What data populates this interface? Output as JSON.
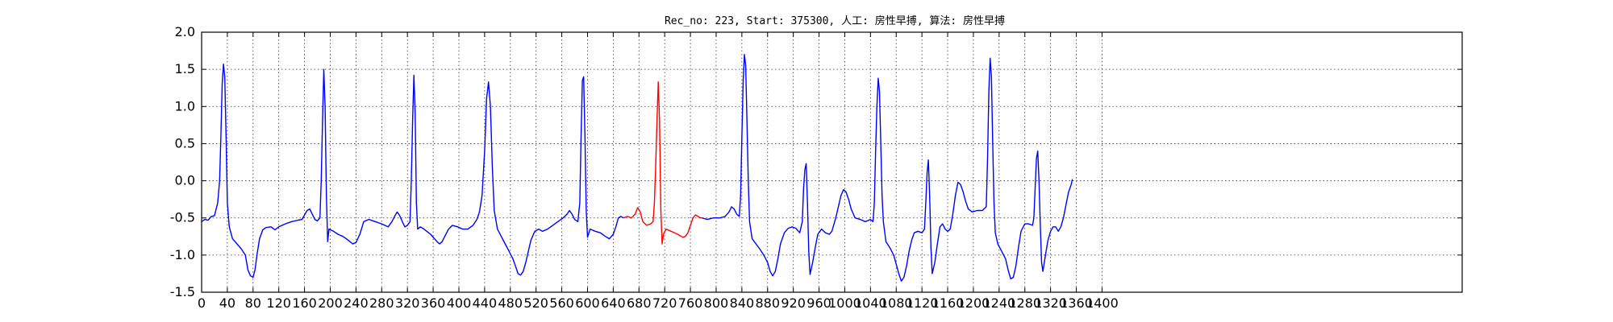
{
  "chart_data": {
    "type": "line",
    "title": "Rec_no: 223, Start: 375300, 人工: 房性早搏, 算法: 房性早搏",
    "xlabel": "",
    "ylabel": "",
    "xlim": [
      0,
      1960
    ],
    "ylim": [
      -1.5,
      2.0
    ],
    "yticks": [
      -1.5,
      -1.0,
      -0.5,
      0.0,
      0.5,
      1.0,
      1.5,
      2.0
    ],
    "xtick_step": 40,
    "xtick_max": 1400,
    "grid": true,
    "series": [
      {
        "color": "#0000ff",
        "segment": "pre",
        "points": [
          [
            0,
            -0.55
          ],
          [
            5,
            -0.52
          ],
          [
            10,
            -0.53
          ],
          [
            15,
            -0.48
          ],
          [
            20,
            -0.47
          ],
          [
            25,
            -0.3
          ],
          [
            28,
            0.0
          ],
          [
            30,
            0.6
          ],
          [
            32,
            1.3
          ],
          [
            34,
            1.57
          ],
          [
            36,
            1.4
          ],
          [
            38,
            0.6
          ],
          [
            40,
            -0.3
          ],
          [
            43,
            -0.62
          ],
          [
            48,
            -0.78
          ],
          [
            55,
            -0.85
          ],
          [
            62,
            -0.92
          ],
          [
            68,
            -1.0
          ],
          [
            72,
            -1.2
          ],
          [
            76,
            -1.28
          ],
          [
            80,
            -1.3
          ],
          [
            83,
            -1.2
          ],
          [
            86,
            -1.0
          ],
          [
            90,
            -0.78
          ],
          [
            95,
            -0.66
          ],
          [
            100,
            -0.63
          ],
          [
            108,
            -0.62
          ],
          [
            114,
            -0.66
          ],
          [
            120,
            -0.62
          ],
          [
            130,
            -0.58
          ],
          [
            140,
            -0.55
          ],
          [
            150,
            -0.53
          ],
          [
            156,
            -0.52
          ],
          [
            160,
            -0.46
          ],
          [
            164,
            -0.4
          ],
          [
            168,
            -0.38
          ],
          [
            172,
            -0.45
          ],
          [
            176,
            -0.52
          ],
          [
            180,
            -0.54
          ],
          [
            184,
            -0.5
          ],
          [
            186,
            0.0
          ],
          [
            188,
            0.8
          ],
          [
            190,
            1.5
          ],
          [
            192,
            1.0
          ],
          [
            194,
            -0.2
          ],
          [
            196,
            -0.82
          ],
          [
            198,
            -0.65
          ],
          [
            205,
            -0.68
          ],
          [
            212,
            -0.72
          ],
          [
            220,
            -0.75
          ],
          [
            228,
            -0.8
          ],
          [
            235,
            -0.85
          ],
          [
            240,
            -0.83
          ],
          [
            246,
            -0.72
          ],
          [
            252,
            -0.55
          ],
          [
            260,
            -0.52
          ],
          [
            270,
            -0.55
          ],
          [
            280,
            -0.58
          ],
          [
            290,
            -0.62
          ],
          [
            296,
            -0.55
          ],
          [
            300,
            -0.48
          ],
          [
            304,
            -0.42
          ],
          [
            308,
            -0.47
          ],
          [
            312,
            -0.55
          ],
          [
            316,
            -0.62
          ],
          [
            320,
            -0.6
          ],
          [
            324,
            -0.55
          ],
          [
            326,
            0.0
          ],
          [
            328,
            0.8
          ],
          [
            330,
            1.42
          ],
          [
            332,
            0.9
          ],
          [
            334,
            -0.3
          ],
          [
            336,
            -0.65
          ],
          [
            340,
            -0.62
          ],
          [
            344,
            -0.64
          ],
          [
            350,
            -0.68
          ],
          [
            356,
            -0.72
          ],
          [
            362,
            -0.78
          ],
          [
            366,
            -0.82
          ],
          [
            370,
            -0.85
          ],
          [
            374,
            -0.82
          ],
          [
            378,
            -0.75
          ],
          [
            384,
            -0.65
          ],
          [
            390,
            -0.6
          ],
          [
            398,
            -0.62
          ],
          [
            406,
            -0.65
          ],
          [
            414,
            -0.65
          ],
          [
            422,
            -0.6
          ],
          [
            428,
            -0.52
          ],
          [
            432,
            -0.42
          ],
          [
            436,
            -0.2
          ],
          [
            440,
            0.4
          ],
          [
            443,
            1.1
          ],
          [
            446,
            1.33
          ],
          [
            449,
            1.0
          ],
          [
            452,
            0.2
          ],
          [
            455,
            -0.4
          ],
          [
            460,
            -0.65
          ],
          [
            466,
            -0.75
          ],
          [
            472,
            -0.85
          ],
          [
            478,
            -0.95
          ],
          [
            484,
            -1.05
          ],
          [
            488,
            -1.15
          ],
          [
            492,
            -1.25
          ],
          [
            496,
            -1.27
          ],
          [
            500,
            -1.22
          ],
          [
            504,
            -1.1
          ],
          [
            508,
            -0.95
          ],
          [
            512,
            -0.8
          ],
          [
            518,
            -0.68
          ],
          [
            524,
            -0.65
          ],
          [
            530,
            -0.68
          ],
          [
            538,
            -0.65
          ],
          [
            546,
            -0.6
          ],
          [
            554,
            -0.55
          ],
          [
            562,
            -0.5
          ],
          [
            568,
            -0.45
          ],
          [
            572,
            -0.4
          ],
          [
            576,
            -0.45
          ],
          [
            580,
            -0.52
          ],
          [
            585,
            -0.55
          ],
          [
            588,
            -0.3
          ],
          [
            590,
            0.6
          ],
          [
            592,
            1.35
          ],
          [
            594,
            1.4
          ],
          [
            596,
            0.6
          ],
          [
            598,
            -0.4
          ],
          [
            600,
            -0.76
          ],
          [
            604,
            -0.65
          ],
          [
            612,
            -0.68
          ],
          [
            620,
            -0.7
          ],
          [
            628,
            -0.75
          ],
          [
            634,
            -0.78
          ],
          [
            640,
            -0.72
          ],
          [
            644,
            -0.62
          ],
          [
            648,
            -0.5
          ],
          [
            652,
            -0.48
          ],
          [
            656,
            -0.5
          ]
        ]
      },
      {
        "color": "#ff0000",
        "segment": "event",
        "points": [
          [
            656,
            -0.5
          ],
          [
            662,
            -0.48
          ],
          [
            668,
            -0.5
          ],
          [
            674,
            -0.45
          ],
          [
            678,
            -0.36
          ],
          [
            682,
            -0.42
          ],
          [
            686,
            -0.55
          ],
          [
            692,
            -0.6
          ],
          [
            698,
            -0.58
          ],
          [
            702,
            -0.55
          ],
          [
            704,
            -0.3
          ],
          [
            706,
            0.2
          ],
          [
            708,
            0.8
          ],
          [
            710,
            1.33
          ],
          [
            712,
            0.8
          ],
          [
            714,
            -0.4
          ],
          [
            716,
            -0.85
          ],
          [
            718,
            -0.72
          ],
          [
            722,
            -0.65
          ],
          [
            730,
            -0.68
          ],
          [
            740,
            -0.72
          ],
          [
            748,
            -0.76
          ],
          [
            752,
            -0.75
          ],
          [
            756,
            -0.7
          ],
          [
            760,
            -0.6
          ],
          [
            764,
            -0.5
          ],
          [
            768,
            -0.46
          ],
          [
            772,
            -0.48
          ],
          [
            776,
            -0.5
          ],
          [
            778,
            -0.5
          ]
        ]
      },
      {
        "color": "#0000ff",
        "segment": "post",
        "points": [
          [
            778,
            -0.5
          ],
          [
            786,
            -0.52
          ],
          [
            796,
            -0.5
          ],
          [
            806,
            -0.5
          ],
          [
            814,
            -0.48
          ],
          [
            820,
            -0.42
          ],
          [
            824,
            -0.35
          ],
          [
            828,
            -0.38
          ],
          [
            832,
            -0.45
          ],
          [
            836,
            -0.48
          ],
          [
            838,
            -0.2
          ],
          [
            840,
            0.6
          ],
          [
            842,
            1.35
          ],
          [
            844,
            1.7
          ],
          [
            846,
            1.55
          ],
          [
            848,
            0.8
          ],
          [
            850,
            0.0
          ],
          [
            852,
            -0.55
          ],
          [
            856,
            -0.78
          ],
          [
            862,
            -0.85
          ],
          [
            868,
            -0.92
          ],
          [
            874,
            -1.0
          ],
          [
            880,
            -1.1
          ],
          [
            884,
            -1.22
          ],
          [
            888,
            -1.28
          ],
          [
            892,
            -1.22
          ],
          [
            896,
            -1.05
          ],
          [
            900,
            -0.85
          ],
          [
            906,
            -0.7
          ],
          [
            912,
            -0.64
          ],
          [
            918,
            -0.62
          ],
          [
            924,
            -0.64
          ],
          [
            930,
            -0.7
          ],
          [
            934,
            -0.55
          ],
          [
            936,
            -0.1
          ],
          [
            938,
            0.15
          ],
          [
            940,
            0.23
          ],
          [
            942,
            -0.3
          ],
          [
            944,
            -0.95
          ],
          [
            946,
            -1.26
          ],
          [
            950,
            -1.1
          ],
          [
            954,
            -0.9
          ],
          [
            958,
            -0.72
          ],
          [
            964,
            -0.65
          ],
          [
            970,
            -0.7
          ],
          [
            976,
            -0.72
          ],
          [
            980,
            -0.68
          ],
          [
            986,
            -0.5
          ],
          [
            990,
            -0.35
          ],
          [
            994,
            -0.2
          ],
          [
            998,
            -0.12
          ],
          [
            1002,
            -0.15
          ],
          [
            1006,
            -0.25
          ],
          [
            1010,
            -0.38
          ],
          [
            1016,
            -0.5
          ],
          [
            1024,
            -0.52
          ],
          [
            1032,
            -0.55
          ],
          [
            1040,
            -0.52
          ],
          [
            1044,
            -0.55
          ],
          [
            1046,
            -0.3
          ],
          [
            1048,
            0.4
          ],
          [
            1050,
            1.0
          ],
          [
            1052,
            1.38
          ],
          [
            1054,
            1.2
          ],
          [
            1056,
            0.5
          ],
          [
            1058,
            -0.2
          ],
          [
            1060,
            -0.55
          ],
          [
            1064,
            -0.82
          ],
          [
            1070,
            -0.9
          ],
          [
            1076,
            -1.0
          ],
          [
            1080,
            -1.12
          ],
          [
            1084,
            -1.25
          ],
          [
            1088,
            -1.35
          ],
          [
            1092,
            -1.3
          ],
          [
            1096,
            -1.15
          ],
          [
            1100,
            -0.95
          ],
          [
            1104,
            -0.8
          ],
          [
            1108,
            -0.7
          ],
          [
            1114,
            -0.68
          ],
          [
            1120,
            -0.7
          ],
          [
            1124,
            -0.65
          ],
          [
            1126,
            -0.3
          ],
          [
            1128,
            0.1
          ],
          [
            1130,
            0.28
          ],
          [
            1132,
            -0.2
          ],
          [
            1134,
            -0.9
          ],
          [
            1136,
            -1.25
          ],
          [
            1140,
            -1.1
          ],
          [
            1144,
            -0.85
          ],
          [
            1148,
            -0.62
          ],
          [
            1152,
            -0.58
          ],
          [
            1156,
            -0.65
          ],
          [
            1160,
            -0.68
          ],
          [
            1164,
            -0.65
          ],
          [
            1168,
            -0.45
          ],
          [
            1172,
            -0.2
          ],
          [
            1176,
            -0.02
          ],
          [
            1180,
            -0.05
          ],
          [
            1184,
            -0.15
          ],
          [
            1188,
            -0.28
          ],
          [
            1192,
            -0.38
          ],
          [
            1198,
            -0.42
          ],
          [
            1206,
            -0.4
          ],
          [
            1214,
            -0.4
          ],
          [
            1220,
            -0.35
          ],
          [
            1222,
            0.3
          ],
          [
            1224,
            1.2
          ],
          [
            1226,
            1.65
          ],
          [
            1228,
            1.4
          ],
          [
            1230,
            0.5
          ],
          [
            1232,
            -0.3
          ],
          [
            1234,
            -0.7
          ],
          [
            1238,
            -0.85
          ],
          [
            1244,
            -0.95
          ],
          [
            1250,
            -1.05
          ],
          [
            1254,
            -1.2
          ],
          [
            1258,
            -1.32
          ],
          [
            1262,
            -1.3
          ],
          [
            1266,
            -1.15
          ],
          [
            1270,
            -0.9
          ],
          [
            1274,
            -0.68
          ],
          [
            1280,
            -0.58
          ],
          [
            1286,
            -0.58
          ],
          [
            1292,
            -0.6
          ],
          [
            1294,
            -0.5
          ],
          [
            1296,
            -0.1
          ],
          [
            1298,
            0.3
          ],
          [
            1300,
            0.4
          ],
          [
            1302,
            0.0
          ],
          [
            1304,
            -0.6
          ],
          [
            1306,
            -1.1
          ],
          [
            1308,
            -1.22
          ],
          [
            1312,
            -1.0
          ],
          [
            1316,
            -0.8
          ],
          [
            1320,
            -0.68
          ],
          [
            1324,
            -0.62
          ],
          [
            1328,
            -0.62
          ],
          [
            1332,
            -0.68
          ],
          [
            1336,
            -0.62
          ],
          [
            1340,
            -0.5
          ],
          [
            1344,
            -0.32
          ],
          [
            1348,
            -0.15
          ],
          [
            1352,
            -0.05
          ],
          [
            1354,
            0.02
          ]
        ]
      }
    ]
  }
}
